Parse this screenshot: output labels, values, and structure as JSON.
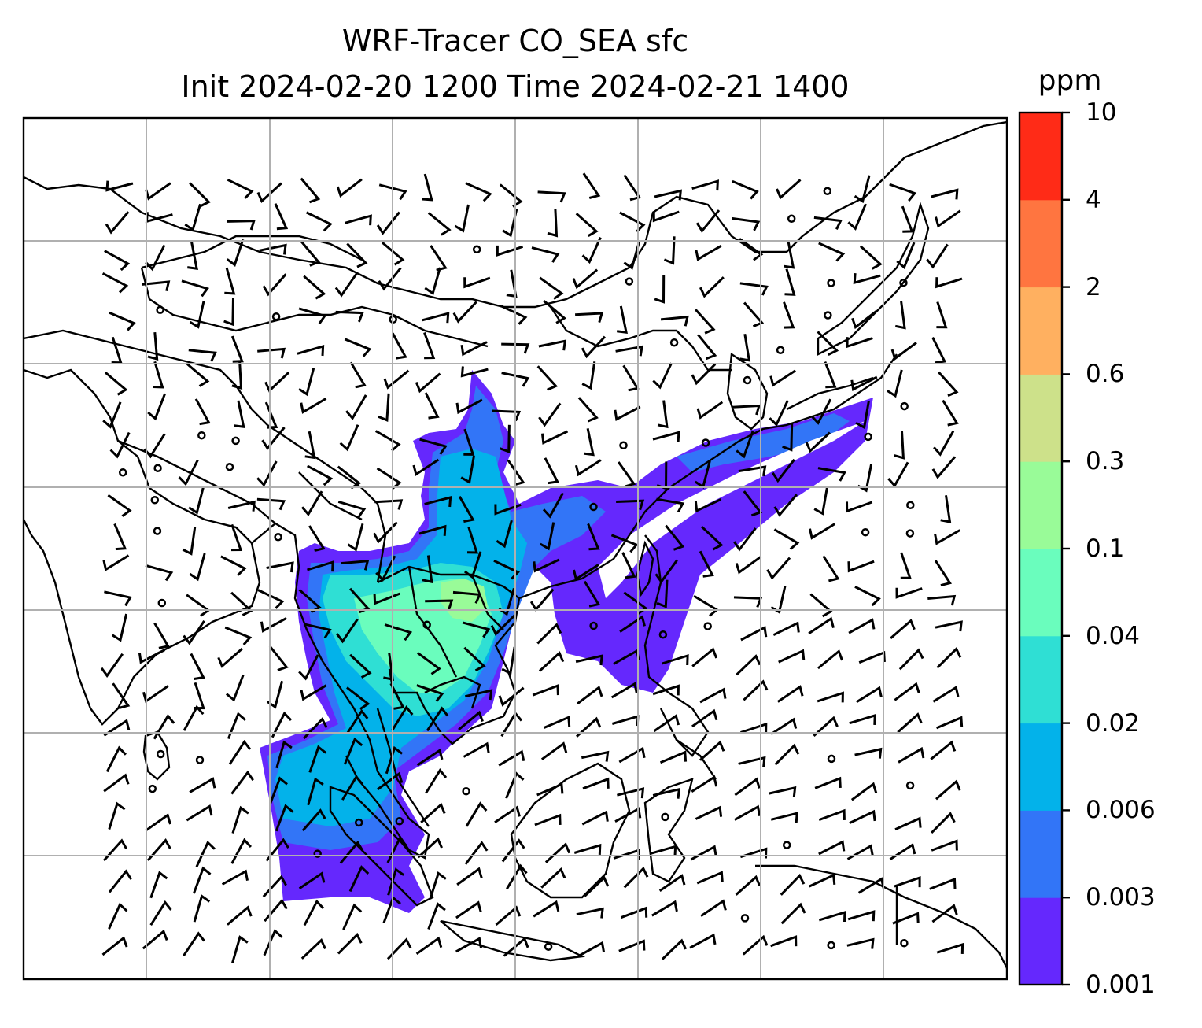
{
  "title": {
    "line1": "WRF-Tracer CO_SEA sfc",
    "line2": "Init 2024-02-20 1200 Time 2024-02-21 1400"
  },
  "colorbar": {
    "unit": "ppm",
    "levels": [
      "0.001",
      "0.003",
      "0.006",
      "0.02",
      "0.04",
      "0.1",
      "0.3",
      "0.6",
      "2",
      "4",
      "10"
    ],
    "colors": [
      "#6528fd",
      "#3275f7",
      "#03b2ea",
      "#2fdfd4",
      "#6afdbd",
      "#99fb98",
      "#cde18a",
      "#ffb060",
      "#ff7540",
      "#ff2b17"
    ]
  },
  "map": {
    "gridlines": true,
    "gridline_color": "#b0b0b0",
    "coastline_color": "#000000"
  }
}
